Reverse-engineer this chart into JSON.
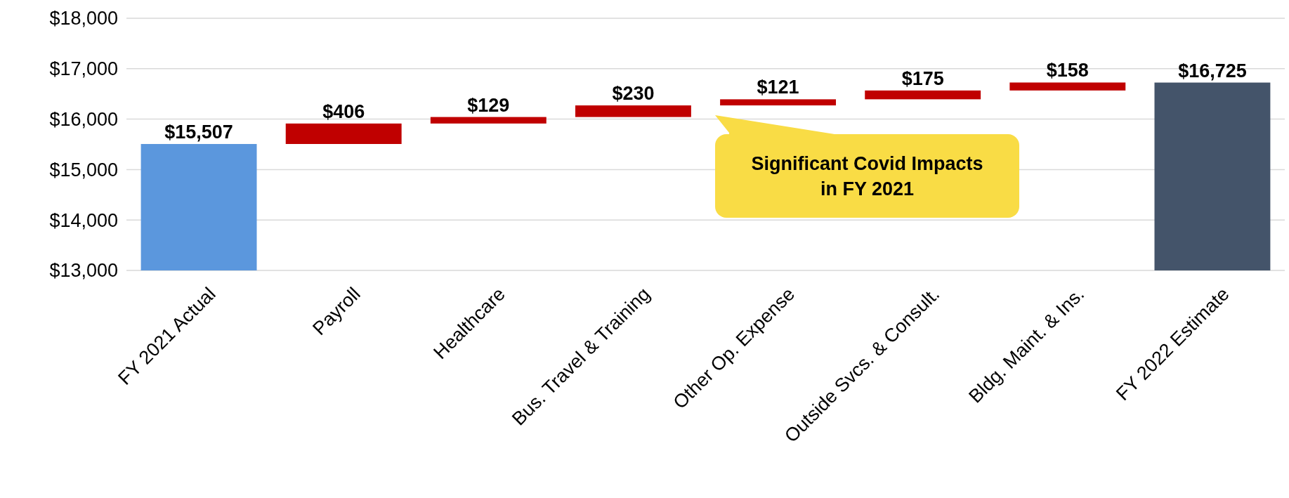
{
  "chart_data": {
    "type": "bar",
    "categories": [
      "FY 2021 Actual",
      "Payroll",
      "Healthcare",
      "Bus. Travel & Training",
      "Other Op. Expense",
      "Outside Svcs. & Consult.",
      "Bldg. Maint. & Ins.",
      "FY 2022 Estimate"
    ],
    "values": [
      15507,
      406,
      129,
      230,
      121,
      175,
      158,
      16725
    ],
    "base": [
      null,
      15507,
      15913,
      16042,
      16272,
      16393,
      16568,
      null
    ],
    "colors": [
      "#5b97dd",
      "#c00000",
      "#c00000",
      "#c00000",
      "#c00000",
      "#c00000",
      "#c00000",
      "#44546a"
    ],
    "value_labels": [
      "$15,507",
      "$406",
      "$129",
      "$230",
      "$121",
      "$175",
      "$158",
      "$16,725"
    ],
    "ylim": [
      13000,
      18000
    ],
    "yticks": [
      {
        "value": 13000,
        "label": "$13,000"
      },
      {
        "value": 14000,
        "label": "$14,000"
      },
      {
        "value": 15000,
        "label": "$15,000"
      },
      {
        "value": 16000,
        "label": "$16,000"
      },
      {
        "value": 17000,
        "label": "$17,000"
      },
      {
        "value": 18000,
        "label": "$18,000"
      }
    ],
    "grid": "y",
    "annotations": [
      "Significant Covid Impacts in FY 2021"
    ]
  }
}
